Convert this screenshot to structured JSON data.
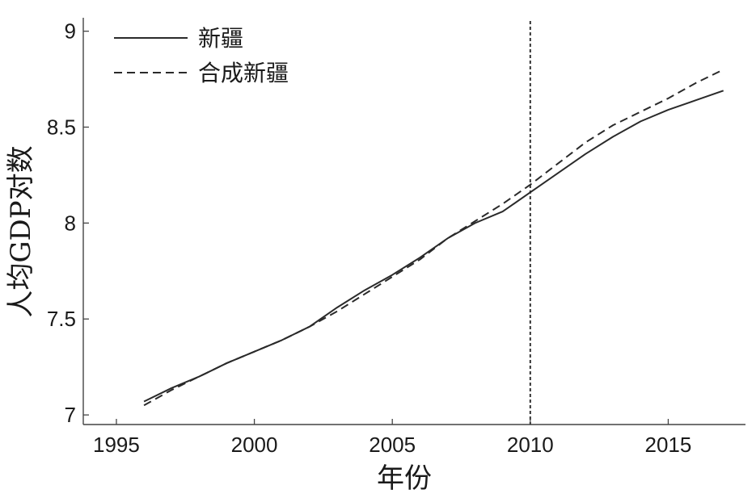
{
  "chart_data": {
    "type": "line",
    "xlabel": "年份",
    "ylabel": "人均GDP对数",
    "xlim": [
      1993.8,
      2017.8
    ],
    "ylim": [
      6.95,
      9.07
    ],
    "xticks": [
      "1995",
      "2000",
      "2005",
      "2010",
      "2015"
    ],
    "yticks": [
      "7",
      "7.5",
      "8",
      "8.5",
      "9"
    ],
    "grid": false,
    "legend_position": "top-left",
    "reference_line": {
      "x": 2010,
      "style": "dotted"
    },
    "series": [
      {
        "name": "新疆",
        "style": "solid",
        "color": "#2a2a2a",
        "x": [
          1996,
          1997,
          1998,
          1999,
          2000,
          2001,
          2002,
          2003,
          2004,
          2005,
          2006,
          2007,
          2008,
          2009,
          2010,
          2011,
          2012,
          2013,
          2014,
          2015,
          2016,
          2017
        ],
        "y": [
          7.07,
          7.14,
          7.2,
          7.27,
          7.33,
          7.39,
          7.46,
          7.56,
          7.65,
          7.73,
          7.82,
          7.92,
          8.0,
          8.06,
          8.16,
          8.26,
          8.36,
          8.45,
          8.53,
          8.59,
          8.64,
          8.69
        ]
      },
      {
        "name": "合成新疆",
        "style": "dashed",
        "color": "#2a2a2a",
        "x": [
          1996,
          1997,
          1998,
          1999,
          2000,
          2001,
          2002,
          2003,
          2004,
          2005,
          2006,
          2007,
          2008,
          2009,
          2010,
          2011,
          2012,
          2013,
          2014,
          2015,
          2016,
          2017
        ],
        "y": [
          7.05,
          7.13,
          7.2,
          7.27,
          7.33,
          7.39,
          7.46,
          7.54,
          7.63,
          7.72,
          7.81,
          7.92,
          8.01,
          8.1,
          8.2,
          8.31,
          8.42,
          8.51,
          8.58,
          8.65,
          8.73,
          8.8
        ]
      }
    ]
  }
}
